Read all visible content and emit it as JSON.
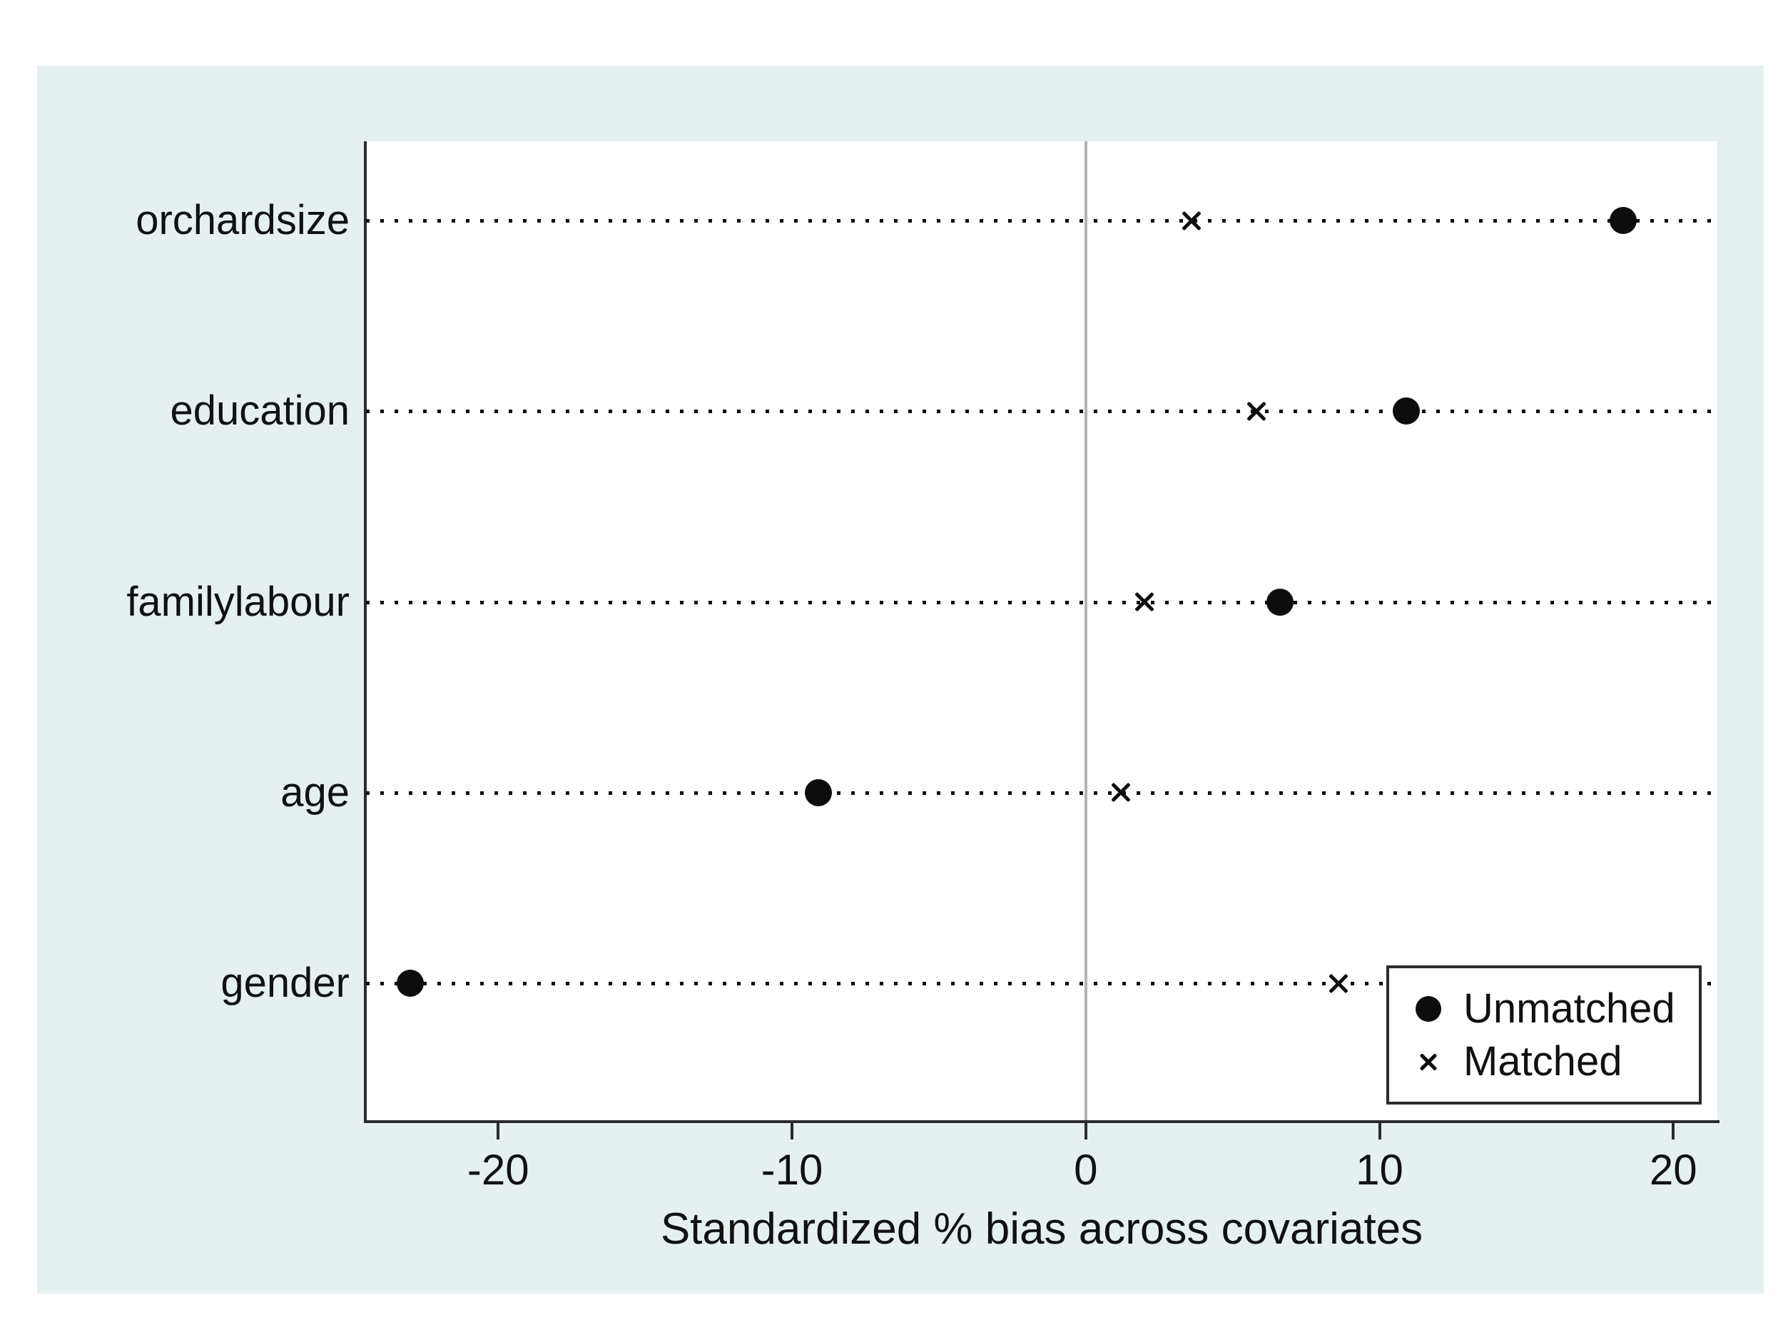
{
  "chart_data": {
    "type": "scatter",
    "title": "",
    "xlabel": "Standardized % bias across covariates",
    "ylabel": "",
    "categories": [
      "orchardsize",
      "education",
      "familylabour",
      "age",
      "gender"
    ],
    "series": [
      {
        "name": "Unmatched",
        "marker": "circle",
        "values": [
          18.3,
          10.9,
          6.6,
          -9.1,
          -23.0
        ]
      },
      {
        "name": "Matched",
        "marker": "x",
        "values": [
          3.6,
          5.8,
          2.0,
          1.2,
          8.6
        ]
      }
    ],
    "x_ticks": [
      -20,
      -10,
      0,
      10,
      20
    ],
    "x_tick_labels": [
      "-20",
      "-10",
      "0",
      "10",
      "20"
    ],
    "xlim": [
      -24.5,
      21.5
    ],
    "zero_reference_line": 0,
    "grid": "horizontal dotted line per category",
    "legend_position": "inside bottom-right"
  },
  "legend": {
    "unmatched_label": "Unmatched",
    "matched_label": "Matched"
  },
  "colors": {
    "figure_background": "#ffffff",
    "panel_background": "#e6f0f1",
    "plot_background": "#ffffff",
    "marker": "#0d0d0d",
    "axis": "#2b2b2b",
    "zero_line": "#b3b3b3"
  }
}
